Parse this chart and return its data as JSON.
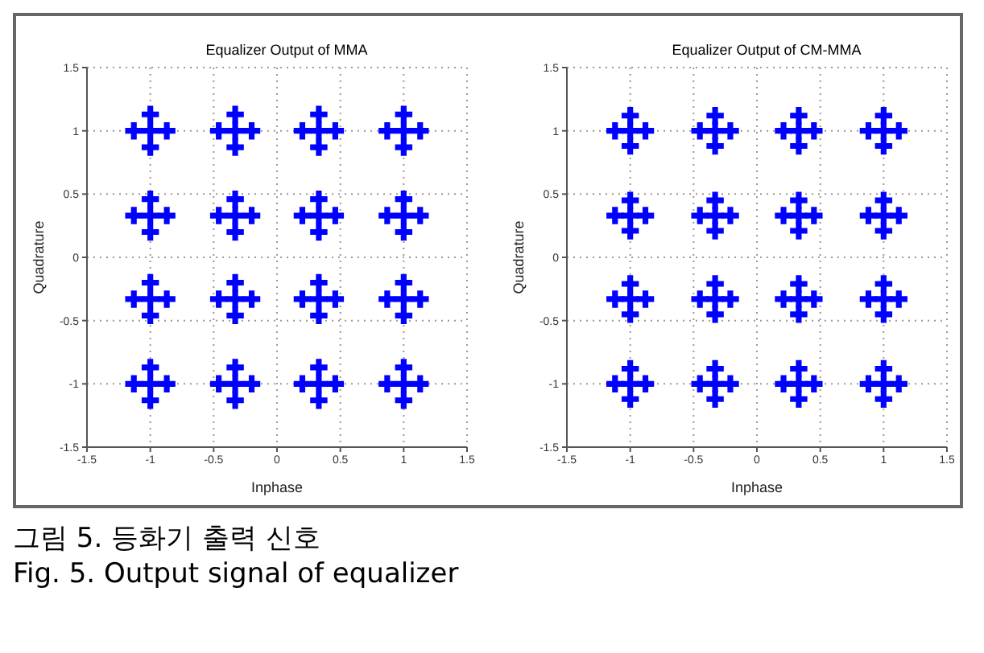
{
  "chart_data": [
    {
      "type": "scatter",
      "title": "Equalizer Output of MMA",
      "xlabel": "Inphase",
      "ylabel": "Quadrature",
      "color": "#0000ff",
      "marker": "cross",
      "grid": true,
      "xlim": [
        -1.5,
        1.5
      ],
      "ylim": [
        -1.5,
        1.5
      ],
      "xticks": [
        -1.5,
        -1,
        -0.5,
        0,
        0.5,
        1,
        1.5
      ],
      "yticks": [
        -1.5,
        -1,
        -0.5,
        0,
        0.5,
        1,
        1.5
      ],
      "x": [
        -1,
        -1.13,
        -0.87,
        -1,
        -1,
        -0.33,
        -0.46,
        -0.2,
        -0.33,
        -0.33,
        0.33,
        0.2,
        0.46,
        0.33,
        0.33,
        1,
        0.87,
        1.13,
        1,
        1,
        -1,
        -1.13,
        -0.87,
        -1,
        -1,
        -0.33,
        -0.46,
        -0.2,
        -0.33,
        -0.33,
        0.33,
        0.2,
        0.46,
        0.33,
        0.33,
        1,
        0.87,
        1.13,
        1,
        1,
        -1,
        -1.13,
        -0.87,
        -1,
        -1,
        -0.33,
        -0.46,
        -0.2,
        -0.33,
        -0.33,
        0.33,
        0.2,
        0.46,
        0.33,
        0.33,
        1,
        0.87,
        1.13,
        1,
        1,
        -1,
        -1.13,
        -0.87,
        -1,
        -1,
        -0.33,
        -0.46,
        -0.2,
        -0.33,
        -0.33,
        0.33,
        0.2,
        0.46,
        0.33,
        0.33,
        1,
        0.87,
        1.13,
        1,
        1
      ],
      "values": [
        1,
        1,
        1,
        0.87,
        1.13,
        1,
        1,
        1,
        0.87,
        1.13,
        1,
        1,
        1,
        0.87,
        1.13,
        1,
        1,
        1,
        0.87,
        1.13,
        0.33,
        0.33,
        0.33,
        0.2,
        0.46,
        0.33,
        0.33,
        0.33,
        0.2,
        0.46,
        0.33,
        0.33,
        0.33,
        0.2,
        0.46,
        0.33,
        0.33,
        0.33,
        0.2,
        0.46,
        -0.33,
        -0.33,
        -0.33,
        -0.46,
        -0.2,
        -0.33,
        -0.33,
        -0.33,
        -0.46,
        -0.2,
        -0.33,
        -0.33,
        -0.33,
        -0.46,
        -0.2,
        -0.33,
        -0.33,
        -0.33,
        -0.46,
        -0.2,
        -1,
        -1,
        -1,
        -1.13,
        -0.87,
        -1,
        -1,
        -1,
        -1.13,
        -0.87,
        -1,
        -1,
        -1,
        -1.13,
        -0.87,
        -1,
        -1,
        -1,
        -1.13,
        -0.87
      ],
      "annotations": [
        "그림 5. 등화기 출력 신호",
        "Fig. 5. Output signal of equalizer"
      ]
    },
    {
      "type": "scatter",
      "title": "Equalizer Output of CM-MMA",
      "xlabel": "Inphase",
      "ylabel": "Quadrature",
      "color": "#0000ff",
      "marker": "cross",
      "grid": true,
      "xlim": [
        -1.5,
        1.5
      ],
      "ylim": [
        -1.5,
        1.5
      ],
      "xticks": [
        -1.5,
        -1,
        -0.5,
        0,
        0.5,
        1,
        1.5
      ],
      "yticks": [
        -1.5,
        -1,
        -0.5,
        0,
        0.5,
        1,
        1.5
      ],
      "x": [
        -1,
        -1.12,
        -0.88,
        -1,
        -1,
        -0.33,
        -0.45,
        -0.21,
        -0.33,
        -0.33,
        0.33,
        0.21,
        0.45,
        0.33,
        0.33,
        1,
        0.88,
        1.12,
        1,
        1,
        -1,
        -1.12,
        -0.88,
        -1,
        -1,
        -0.33,
        -0.45,
        -0.21,
        -0.33,
        -0.33,
        0.33,
        0.21,
        0.45,
        0.33,
        0.33,
        1,
        0.88,
        1.12,
        1,
        1,
        -1,
        -1.12,
        -0.88,
        -1,
        -1,
        -0.33,
        -0.45,
        -0.21,
        -0.33,
        -0.33,
        0.33,
        0.21,
        0.45,
        0.33,
        0.33,
        1,
        0.88,
        1.12,
        1,
        1,
        -1,
        -1.12,
        -0.88,
        -1,
        -1,
        -0.33,
        -0.45,
        -0.21,
        -0.33,
        -0.33,
        0.33,
        0.21,
        0.45,
        0.33,
        0.33,
        1,
        0.88,
        1.12,
        1,
        1
      ],
      "values": [
        1,
        1,
        1,
        0.88,
        1.12,
        1,
        1,
        1,
        0.88,
        1.12,
        1,
        1,
        1,
        0.88,
        1.12,
        1,
        1,
        1,
        0.88,
        1.12,
        0.33,
        0.33,
        0.33,
        0.21,
        0.45,
        0.33,
        0.33,
        0.33,
        0.21,
        0.45,
        0.33,
        0.33,
        0.33,
        0.21,
        0.45,
        0.33,
        0.33,
        0.33,
        0.21,
        0.45,
        -0.33,
        -0.33,
        -0.33,
        -0.45,
        -0.21,
        -0.33,
        -0.33,
        -0.33,
        -0.45,
        -0.21,
        -0.33,
        -0.33,
        -0.33,
        -0.45,
        -0.21,
        -0.33,
        -0.33,
        -0.33,
        -0.45,
        -0.21,
        -1,
        -1,
        -1,
        -1.12,
        -0.88,
        -1,
        -1,
        -1,
        -1.12,
        -0.88,
        -1,
        -1,
        -1,
        -1.12,
        -0.88,
        -1,
        -1,
        -1,
        -1.12,
        -0.88
      ]
    }
  ]
}
